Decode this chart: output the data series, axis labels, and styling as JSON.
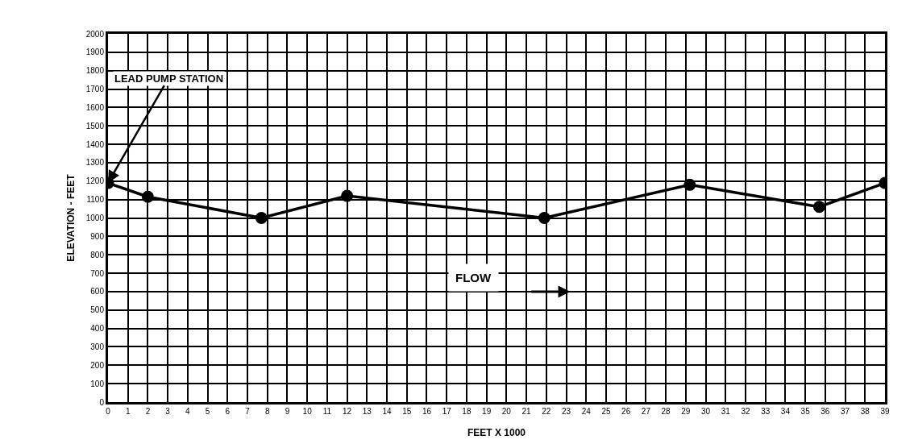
{
  "chart_data": {
    "type": "line",
    "xlabel": "FEET X 1000",
    "ylabel": "ELEVATION - FEET",
    "x": [
      0,
      2,
      7.7,
      12,
      21.9,
      29.2,
      35.7,
      39
    ],
    "series": [
      {
        "color": "#000000",
        "values": [
          1190,
          1115,
          1000,
          1120,
          1000,
          1180,
          1060,
          1190
        ]
      }
    ],
    "xlim": [
      0,
      39
    ],
    "xticks": [
      0,
      1,
      2,
      3,
      4,
      5,
      6,
      7,
      8,
      9,
      10,
      11,
      12,
      13,
      14,
      15,
      16,
      17,
      18,
      19,
      20,
      21,
      22,
      23,
      24,
      25,
      26,
      27,
      28,
      29,
      30,
      31,
      32,
      33,
      34,
      35,
      36,
      37,
      38,
      39
    ],
    "ylim": [
      0,
      2000
    ],
    "yticks": [
      0,
      100,
      200,
      300,
      400,
      500,
      600,
      700,
      800,
      900,
      1000,
      1100,
      1200,
      1300,
      1400,
      1500,
      1600,
      1700,
      1800,
      1900,
      2000
    ],
    "grid": true,
    "marker": "circle",
    "line_style": "solid",
    "annotations": [
      {
        "text": "LEAD PUMP STATION",
        "x": 0,
        "y": 1190
      },
      "FLOW"
    ]
  }
}
